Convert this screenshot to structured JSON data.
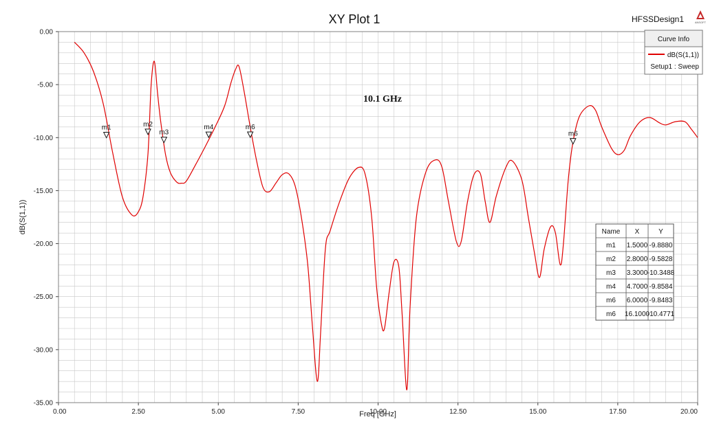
{
  "design_name": "HFSSDesign1",
  "logo_text": "ANSOFT",
  "colors": {
    "trace": "#e00000",
    "grid": "#c8c8c8",
    "frame": "#808080"
  },
  "chart_data": {
    "type": "line",
    "title": "XY Plot 1",
    "xlabel": "Freq [GHz]",
    "ylabel": "dB(S(1,1))",
    "xlim": [
      0,
      20
    ],
    "ylim": [
      -35,
      0
    ],
    "xticks": [
      "0.00",
      "2.50",
      "5.00",
      "7.50",
      "10.00",
      "12.50",
      "15.00",
      "17.50",
      "20.00"
    ],
    "yticks": [
      "0.00",
      "-5.00",
      "-10.00",
      "-15.00",
      "-20.00",
      "-25.00",
      "-30.00",
      "-35.00"
    ],
    "grid": true,
    "annotation": "10.1 GHz",
    "legend": {
      "header": "Curve Info",
      "placement": "top-right",
      "entries": [
        {
          "name": "dB(S(1,1))",
          "subtitle": "Setup1 : Sweep"
        }
      ]
    },
    "series": [
      {
        "name": "dB(S(1,1))",
        "x": [
          0.5,
          0.8,
          1.1,
          1.4,
          1.7,
          2.0,
          2.3,
          2.5,
          2.65,
          2.8,
          2.9,
          3.0,
          3.1,
          3.2,
          3.35,
          3.5,
          3.7,
          3.85,
          4.0,
          4.3,
          4.6,
          4.9,
          5.2,
          5.4,
          5.55,
          5.65,
          5.8,
          6.0,
          6.2,
          6.4,
          6.6,
          6.8,
          7.0,
          7.2,
          7.4,
          7.6,
          7.8,
          7.95,
          8.1,
          8.2,
          8.35,
          8.5,
          8.8,
          9.1,
          9.4,
          9.6,
          9.8,
          9.95,
          10.1,
          10.2,
          10.35,
          10.5,
          10.65,
          10.75,
          10.9,
          11.0,
          11.2,
          11.5,
          11.8,
          12.0,
          12.2,
          12.45,
          12.6,
          12.8,
          13.0,
          13.2,
          13.35,
          13.5,
          13.7,
          14.0,
          14.2,
          14.5,
          14.7,
          14.9,
          15.05,
          15.2,
          15.4,
          15.55,
          15.7,
          15.8,
          15.95,
          16.1,
          16.3,
          16.6,
          16.8,
          17.0,
          17.3,
          17.5,
          17.7,
          17.9,
          18.2,
          18.5,
          18.8,
          19.0,
          19.3,
          19.6,
          19.8,
          20.0
        ],
        "y": [
          -1.0,
          -2.0,
          -3.8,
          -6.8,
          -11.5,
          -15.6,
          -17.3,
          -17.0,
          -15.5,
          -11.5,
          -5.0,
          -2.8,
          -5.8,
          -8.5,
          -11.6,
          -13.3,
          -14.2,
          -14.3,
          -14.1,
          -12.5,
          -10.8,
          -9.0,
          -7.0,
          -4.8,
          -3.5,
          -3.3,
          -5.5,
          -9.0,
          -12.2,
          -14.7,
          -15.1,
          -14.3,
          -13.5,
          -13.4,
          -14.5,
          -17.5,
          -22.0,
          -28.0,
          -33.0,
          -28.5,
          -20.5,
          -18.8,
          -16.0,
          -13.8,
          -12.8,
          -13.5,
          -17.5,
          -24.0,
          -27.5,
          -28.0,
          -24.5,
          -21.7,
          -22.2,
          -26.5,
          -33.8,
          -26.0,
          -17.5,
          -13.2,
          -12.1,
          -12.8,
          -16.0,
          -19.8,
          -19.8,
          -16.0,
          -13.5,
          -13.4,
          -16.0,
          -18.0,
          -15.5,
          -12.8,
          -12.2,
          -14.0,
          -17.5,
          -21.0,
          -23.2,
          -20.5,
          -18.4,
          -19.0,
          -22.0,
          -20.0,
          -14.0,
          -10.4,
          -8.0,
          -7.0,
          -7.4,
          -9.0,
          -11.0,
          -11.6,
          -11.2,
          -9.8,
          -8.5,
          -8.1,
          -8.6,
          -8.8,
          -8.5,
          -8.5,
          -9.2,
          -10.0
        ]
      }
    ],
    "markers": [
      {
        "name": "m1",
        "x": 1.5,
        "y": -9.888
      },
      {
        "name": "m2",
        "x": 2.8,
        "y": -9.5828
      },
      {
        "name": "m3",
        "x": 3.3,
        "y": -10.3488
      },
      {
        "name": "m4",
        "x": 4.7,
        "y": -9.8584
      },
      {
        "name": "m6",
        "x": 6.0,
        "y": -9.8483
      },
      {
        "name": "m6",
        "x": 16.1,
        "y": -10.4771
      }
    ],
    "marker_table": {
      "headers": [
        "Name",
        "X",
        "Y"
      ],
      "rows": [
        [
          "m1",
          "1.5000",
          "-9.8880"
        ],
        [
          "m2",
          "2.8000",
          "-9.5828"
        ],
        [
          "m3",
          "3.3000",
          "-10.3488"
        ],
        [
          "m4",
          "4.7000",
          "-9.8584"
        ],
        [
          "m6",
          "6.0000",
          "-9.8483"
        ],
        [
          "m6",
          "16.1000",
          "-10.4771"
        ]
      ]
    }
  }
}
